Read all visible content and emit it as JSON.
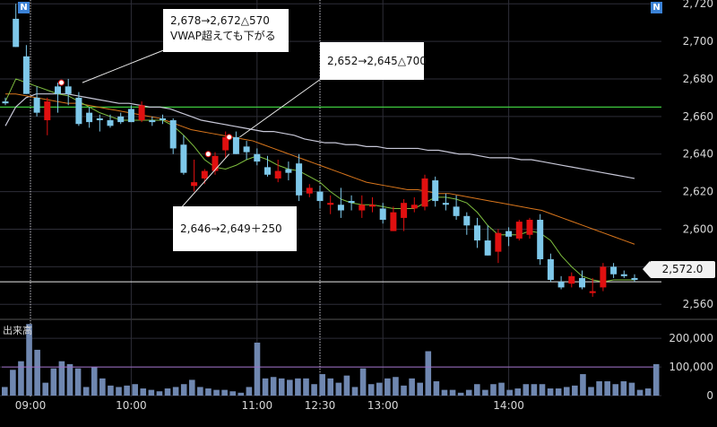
{
  "chart_data": [
    {
      "type": "candlestick",
      "x": [
        "09:00",
        "09:05",
        "09:10",
        "09:15",
        "09:20",
        "09:25",
        "09:30",
        "09:35",
        "09:40",
        "09:45",
        "09:50",
        "09:55",
        "10:00",
        "10:05",
        "10:10",
        "10:15",
        "10:20",
        "10:25",
        "10:30",
        "10:35",
        "10:40",
        "10:45",
        "10:50",
        "10:55",
        "11:00",
        "11:05",
        "11:10",
        "11:15",
        "11:20",
        "11:25",
        "12:30",
        "12:35",
        "12:40",
        "12:45",
        "12:50",
        "12:55",
        "13:00",
        "13:05",
        "13:10",
        "13:15",
        "13:20",
        "13:25",
        "13:30",
        "13:35",
        "13:40",
        "13:45",
        "13:50",
        "13:55",
        "14:00",
        "14:05",
        "14:10",
        "14:15",
        "14:20",
        "14:25",
        "14:30",
        "14:35",
        "14:40",
        "14:45",
        "14:50",
        "14:55",
        "15:00"
      ],
      "x_tick_labels": [
        "09:00",
        "10:00",
        "11:00",
        "12:30",
        "13:00",
        "14:00"
      ],
      "ohlc": [
        [
          2668,
          2670,
          2666,
          2667
        ],
        [
          2712,
          2720,
          2697,
          2697
        ],
        [
          2692,
          2698,
          2672,
          2672
        ],
        [
          2670,
          2676,
          2660,
          2662
        ],
        [
          2658,
          2670,
          2650,
          2668
        ],
        [
          2676,
          2678,
          2662,
          2672
        ],
        [
          2676,
          2680,
          2666,
          2672
        ],
        [
          2670,
          2673,
          2655,
          2656
        ],
        [
          2662,
          2665,
          2654,
          2657
        ],
        [
          2659,
          2661,
          2652,
          2658
        ],
        [
          2658,
          2661,
          2654,
          2655
        ],
        [
          2660,
          2662,
          2656,
          2657
        ],
        [
          2664,
          2666,
          2657,
          2657
        ],
        [
          2658,
          2668,
          2657,
          2666
        ],
        [
          2658,
          2660,
          2655,
          2657
        ],
        [
          2659,
          2661,
          2656,
          2658
        ],
        [
          2658,
          2659,
          2640,
          2643
        ],
        [
          2645,
          2650,
          2629,
          2630
        ],
        [
          2623,
          2637,
          2620,
          2625
        ],
        [
          2627,
          2632,
          2624,
          2631
        ],
        [
          2631,
          2641,
          2629,
          2639
        ],
        [
          2642,
          2652,
          2638,
          2649
        ],
        [
          2649,
          2652,
          2640,
          2640
        ],
        [
          2644,
          2647,
          2637,
          2641
        ],
        [
          2640,
          2643,
          2634,
          2636
        ],
        [
          2633,
          2639,
          2628,
          2629
        ],
        [
          2627,
          2637,
          2625,
          2631
        ],
        [
          2632,
          2636,
          2626,
          2630
        ],
        [
          2635,
          2640,
          2615,
          2618
        ],
        [
          2619,
          2624,
          2617,
          2622
        ],
        [
          2620,
          2623,
          2611,
          2615
        ],
        [
          2613,
          2618,
          2608,
          2614
        ],
        [
          2613,
          2622,
          2606,
          2610
        ],
        [
          2615,
          2618,
          2610,
          2614
        ],
        [
          2610,
          2618,
          2606,
          2613
        ],
        [
          2612,
          2617,
          2609,
          2613
        ],
        [
          2611,
          2614,
          2603,
          2605
        ],
        [
          2599,
          2612,
          2599,
          2609
        ],
        [
          2606,
          2616,
          2599,
          2614
        ],
        [
          2611,
          2617,
          2609,
          2613
        ],
        [
          2612,
          2629,
          2610,
          2627
        ],
        [
          2626,
          2628,
          2612,
          2615
        ],
        [
          2614,
          2619,
          2610,
          2613
        ],
        [
          2612,
          2618,
          2605,
          2607
        ],
        [
          2607,
          2609,
          2597,
          2602
        ],
        [
          2602,
          2606,
          2590,
          2594
        ],
        [
          2594,
          2602,
          2586,
          2586
        ],
        [
          2588,
          2600,
          2582,
          2598
        ],
        [
          2599,
          2601,
          2591,
          2596
        ],
        [
          2595,
          2605,
          2594,
          2604
        ],
        [
          2597,
          2606,
          2595,
          2605
        ],
        [
          2605,
          2608,
          2581,
          2584
        ],
        [
          2584,
          2587,
          2572,
          2573
        ],
        [
          2572,
          2575,
          2568,
          2569
        ],
        [
          2571,
          2577,
          2569,
          2575
        ],
        [
          2574,
          2578,
          2568,
          2569
        ],
        [
          2566,
          2574,
          2564,
          2567
        ],
        [
          2569,
          2582,
          2567,
          2580
        ],
        [
          2580,
          2582,
          2574,
          2576
        ],
        [
          2576,
          2578,
          2574,
          2575
        ],
        [
          2574,
          2576,
          2572,
          2573
        ]
      ],
      "vwap": [
        2655,
        2665,
        2670,
        2672,
        2672,
        2672,
        2672,
        2671,
        2670,
        2669,
        2668,
        2667,
        2667,
        2666,
        2665,
        2665,
        2664,
        2662,
        2660,
        2658,
        2657,
        2656,
        2655,
        2654,
        2653,
        2652,
        2652,
        2651,
        2650,
        2648,
        2647,
        2646,
        2646,
        2645,
        2645,
        2644,
        2644,
        2643,
        2643,
        2643,
        2643,
        2642,
        2642,
        2641,
        2640,
        2640,
        2639,
        2638,
        2638,
        2638,
        2637,
        2637,
        2636,
        2635,
        2634,
        2633,
        2632,
        2631,
        2630,
        2629,
        2628,
        2627
      ],
      "ma_orange": [
        2672,
        2672,
        2671,
        2670,
        2669,
        2668,
        2667,
        2667,
        2666,
        2665,
        2664,
        2663,
        2662,
        2661,
        2660,
        2659,
        2657,
        2655,
        2653,
        2652,
        2651,
        2650,
        2649,
        2648,
        2647,
        2645,
        2643,
        2641,
        2639,
        2637,
        2635,
        2633,
        2631,
        2629,
        2627,
        2625,
        2624,
        2623,
        2622,
        2621,
        2621,
        2620,
        2619,
        2619,
        2618,
        2617,
        2616,
        2615,
        2614,
        2613,
        2612,
        2611,
        2610,
        2608,
        2606,
        2604,
        2602,
        2600,
        2598,
        2596,
        2594,
        2592
      ],
      "ma_green": [
        2668,
        2680,
        2678,
        2676,
        2674,
        2672,
        2671,
        2668,
        2665,
        2662,
        2660,
        2658,
        2658,
        2658,
        2658,
        2658,
        2655,
        2650,
        2644,
        2637,
        2633,
        2632,
        2634,
        2637,
        2639,
        2637,
        2634,
        2632,
        2631,
        2628,
        2625,
        2620,
        2616,
        2614,
        2613,
        2613,
        2612,
        2611,
        2611,
        2611,
        2614,
        2617,
        2617,
        2616,
        2614,
        2609,
        2602,
        2597,
        2597,
        2597,
        2599,
        2598,
        2594,
        2586,
        2580,
        2575,
        2573,
        2572,
        2573,
        2573,
        2573
      ],
      "ref_line_green": 2665,
      "current_price_line": 2572,
      "current_price_label": "2,572.0",
      "session_breaks": [
        "09:00",
        "12:30"
      ],
      "y_tick_labels": [
        "2,720",
        "2,700",
        "2,680",
        "2,660",
        "2,640",
        "2,620",
        "2,600",
        "2,580",
        "2,560"
      ],
      "ylim": [
        2552,
        2722
      ],
      "up_color": "#e01010",
      "down_color": "#7ec8ea",
      "markers": [
        {
          "x": "09:25",
          "y": 2678
        },
        {
          "x": "10:45",
          "y": 2649
        },
        {
          "x": "10:35",
          "y": 2640
        }
      ]
    },
    {
      "type": "bar",
      "title": "出来高",
      "values": [
        30,
        90,
        120,
        250,
        160,
        45,
        95,
        120,
        110,
        95,
        30,
        100,
        60,
        35,
        30,
        35,
        40,
        25,
        20,
        15,
        25,
        30,
        40,
        55,
        30,
        25,
        20,
        20,
        15,
        10,
        30,
        185,
        60,
        65,
        60,
        55,
        60,
        60,
        40,
        75,
        60,
        45,
        70,
        30,
        95,
        40,
        45,
        60,
        65,
        35,
        60,
        45,
        155,
        50,
        20,
        20,
        10,
        20,
        40,
        20,
        40,
        45,
        20,
        25,
        40,
        40,
        40,
        25,
        25,
        30,
        35,
        75,
        30,
        50,
        50,
        40,
        50,
        45,
        20,
        25,
        110
      ],
      "ma_violet": [
        100,
        100,
        100,
        100,
        100,
        100,
        100,
        100,
        100,
        100,
        100,
        100,
        100,
        100,
        100,
        100,
        100,
        100,
        100,
        100,
        100,
        100,
        100,
        100,
        100,
        100,
        100,
        100,
        100,
        100,
        100,
        100,
        100,
        100,
        100,
        100,
        100,
        100,
        100,
        100,
        100,
        100,
        100,
        100,
        100,
        100,
        100,
        100,
        100,
        100,
        100,
        100,
        100,
        100,
        100,
        100,
        100,
        100,
        100,
        100,
        100,
        100,
        100,
        100,
        100,
        100,
        100,
        100,
        100,
        100,
        100,
        100,
        100,
        100,
        100,
        100,
        100,
        100,
        100,
        100,
        100
      ],
      "y_tick_labels": [
        "200,000",
        "100,000",
        "0"
      ],
      "ylim": [
        0,
        260000
      ]
    }
  ],
  "annotations": [
    {
      "line1": "2,678→2,672△570",
      "line2": "VWAP超えても下がる"
    },
    {
      "line1": "2,652→2,645△700",
      "line2": ""
    },
    {
      "line1": "2,646→2,649＋250",
      "line2": ""
    }
  ],
  "badges": {
    "left": "N",
    "right": "N"
  }
}
